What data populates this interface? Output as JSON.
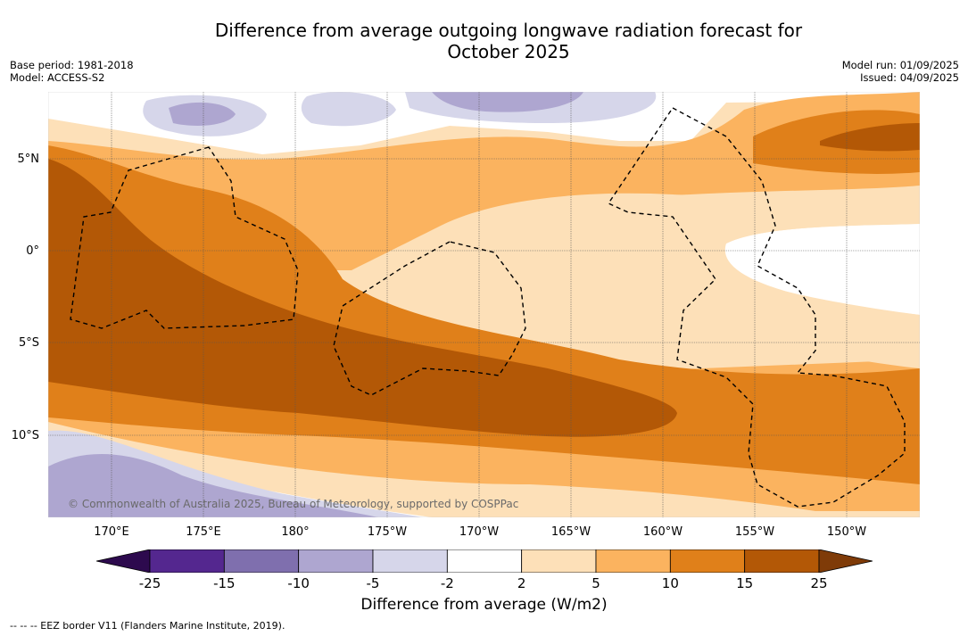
{
  "title_line1": "Difference from average outgoing longwave radiation forecast for",
  "title_line2": "October 2025",
  "meta_left": {
    "base_period": "Base period: 1981-2018",
    "model": "Model: ACCESS-S2"
  },
  "meta_right": {
    "model_run": "Model run: 01/09/2025",
    "issued": "Issued: 04/09/2025"
  },
  "lat_labels": [
    "5°N",
    "0°",
    "5°S",
    "10°S"
  ],
  "lon_labels": [
    "170°E",
    "175°E",
    "180°",
    "175°W",
    "170°W",
    "165°W",
    "160°W",
    "155°W",
    "150°W"
  ],
  "copyright": "© Commonwealth of Australia 2025, Bureau of Meteorology, supported by COSPPac",
  "colorbar": {
    "ticks": [
      "-25",
      "-15",
      "-10",
      "-5",
      "-2",
      "2",
      "5",
      "10",
      "15",
      "25"
    ],
    "colors": [
      "#2d0a4e",
      "#54278f",
      "#7f6fae",
      "#aea6d0",
      "#d6d6ea",
      "#ffffff",
      "#fde0b8",
      "#fbb35f",
      "#e0801a",
      "#b35806",
      "#7f3b08"
    ],
    "title": "Difference from average (W/m2)"
  },
  "footnote": "--  --  -- EEZ border V11 (Flanders Marine Institute, 2019)."
}
